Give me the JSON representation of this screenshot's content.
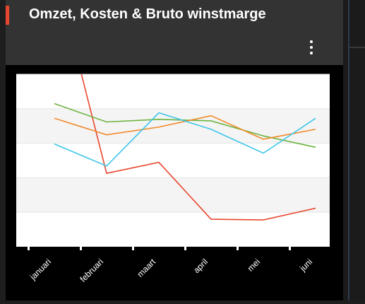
{
  "panel": {
    "title": "Omzet, Kosten & Bruto winstmarge",
    "accent_color": "#e8472f",
    "menu_icon": "more-vertical-icon"
  },
  "chart_data": {
    "type": "line",
    "categories": [
      "januari",
      "februari",
      "maart",
      "april",
      "mei",
      "juni"
    ],
    "ytick_labels": [
      "",
      ""
    ],
    "series": [
      {
        "color": "#e8452c",
        "values": [
          126,
          70,
          73,
          57.5,
          57.3,
          60.5
        ]
      },
      {
        "color": "#6cb33f",
        "values": [
          89,
          84,
          84.7,
          84.3,
          80.2,
          77.1
        ]
      },
      {
        "color": "#f08a2a",
        "values": [
          85,
          80.5,
          82.6,
          85.7,
          79.3,
          82
        ]
      },
      {
        "color": "#3ec6ea",
        "values": [
          78,
          72,
          86.5,
          82,
          75.5,
          85
        ]
      }
    ],
    "ylim": [
      50,
      97
    ],
    "grid": true
  }
}
